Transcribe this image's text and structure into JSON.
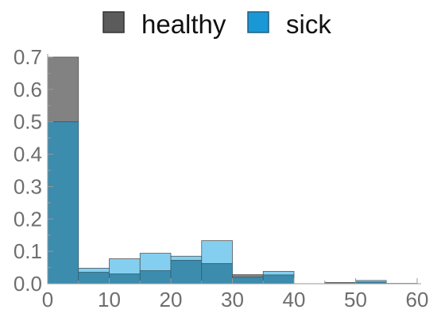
{
  "chart_data": {
    "type": "bar",
    "subtype": "overlapping-histogram",
    "title": "",
    "xlabel": "",
    "ylabel": "",
    "xlim": [
      0,
      60
    ],
    "ylim": [
      0,
      0.7
    ],
    "grid": false,
    "legend_position": "top",
    "bin_width": 5,
    "x_ticks": [
      {
        "value": 0,
        "label": "0"
      },
      {
        "value": 10,
        "label": "10"
      },
      {
        "value": 20,
        "label": "20"
      },
      {
        "value": 30,
        "label": "30"
      },
      {
        "value": 40,
        "label": "40"
      },
      {
        "value": 50,
        "label": "50"
      },
      {
        "value": 60,
        "label": "60"
      }
    ],
    "y_ticks": [
      {
        "value": 0,
        "label": "0.0"
      },
      {
        "value": 0.1,
        "label": "0.1"
      },
      {
        "value": 0.2,
        "label": "0.2"
      },
      {
        "value": 0.3,
        "label": "0.3"
      },
      {
        "value": 0.4,
        "label": "0.4"
      },
      {
        "value": 0.5,
        "label": "0.5"
      },
      {
        "value": 0.6,
        "label": "0.6"
      },
      {
        "value": 0.7,
        "label": "0.7"
      }
    ],
    "bin_starts": [
      0,
      5,
      10,
      15,
      20,
      25,
      30,
      35,
      40,
      45,
      50,
      55
    ],
    "series": [
      {
        "name": "healthy",
        "legend_color": "#5b5b5b",
        "fill_color": "#828282",
        "values": [
          0.7,
          0.035,
          0.03,
          0.04,
          0.072,
          0.062,
          0.028,
          0.027,
          0.0,
          0.004,
          0.005,
          0.001
        ]
      },
      {
        "name": "sick",
        "legend_color": "#1a98d6",
        "fill_color": "#84cfef",
        "values": [
          0.5,
          0.048,
          0.077,
          0.094,
          0.085,
          0.133,
          0.02,
          0.038,
          0.0,
          0.0,
          0.01,
          0.0
        ]
      }
    ],
    "overlap_color": "#3c8cae"
  }
}
